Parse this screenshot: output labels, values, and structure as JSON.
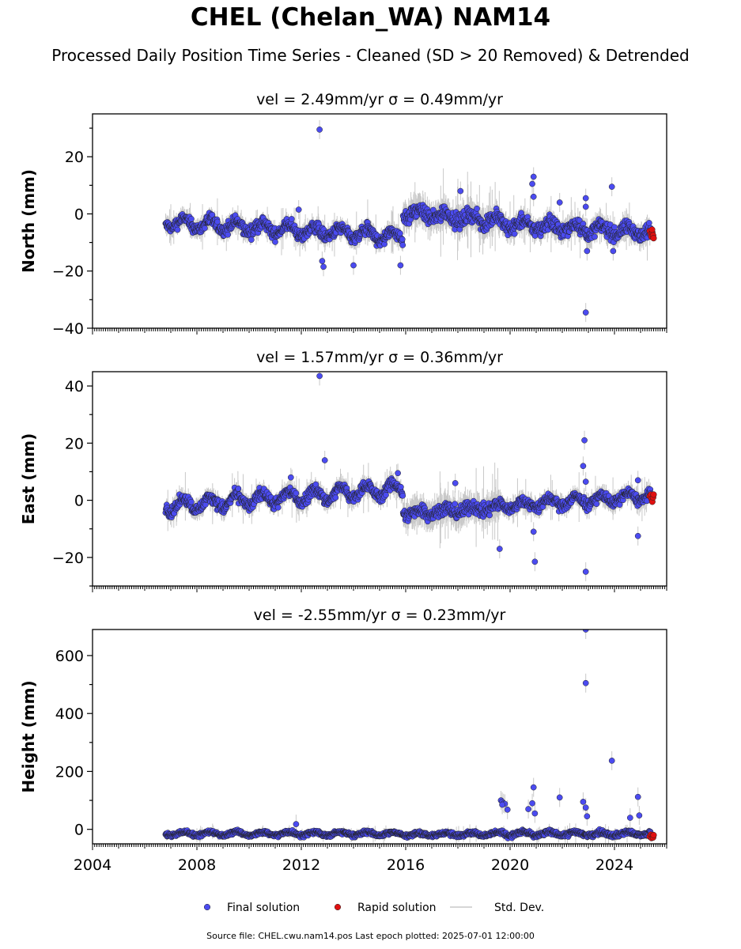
{
  "title": "CHEL (Chelan_WA) NAM14",
  "subtitle": "Processed Daily Position Time Series - Cleaned (SD > 20 Removed) & Detrended",
  "footer": "Source file: CHEL.cwu.nam14.pos  Last epoch plotted: 2025-07-01 12:00:00",
  "colors": {
    "final": "#4b4bf0",
    "rapid": "#e01010",
    "stddev": "#c8c8c8",
    "edge": "#222222"
  },
  "legend": [
    {
      "key": "final",
      "label": "Final solution",
      "marker": "dot"
    },
    {
      "key": "rapid",
      "label": "Rapid solution",
      "marker": "dot"
    },
    {
      "key": "stddev",
      "label": "Std. Dev.",
      "marker": "line"
    }
  ],
  "chart_data": [
    {
      "type": "scatter",
      "title": "vel = 2.49mm/yr   σ = 0.49mm/yr",
      "ylabel": "North (mm)",
      "xlim": [
        2004.0,
        2026.0
      ],
      "ylim": [
        -40,
        35
      ],
      "yticks": [
        -40,
        -20,
        0,
        20
      ],
      "xticks": [
        2004,
        2008,
        2012,
        2016,
        2020,
        2024
      ],
      "show_xtick_labels": false,
      "segments": [
        {
          "t0": 2006.8,
          "t1": 2015.9,
          "start": -3.0,
          "end": -8.0,
          "amp": 1.8,
          "noise": 1.6,
          "err": 2.5
        },
        {
          "t0": 2015.9,
          "t1": 2019.6,
          "start": 0.5,
          "end": -2.5,
          "amp": 1.5,
          "noise": 2.0,
          "err": 4.0
        },
        {
          "t0": 2019.6,
          "t1": 2025.4,
          "start": -3.5,
          "end": -6.5,
          "amp": 1.5,
          "noise": 1.8,
          "err": 3.0
        }
      ],
      "outliers": [
        [
          2012.7,
          29.5
        ],
        [
          2011.9,
          1.5
        ],
        [
          2012.8,
          -16.5
        ],
        [
          2012.85,
          -18.5
        ],
        [
          2014.0,
          -18.0
        ],
        [
          2015.8,
          -18.0
        ],
        [
          2020.9,
          13.0
        ],
        [
          2020.85,
          10.5
        ],
        [
          2020.9,
          6.0
        ],
        [
          2021.9,
          4.0
        ],
        [
          2022.9,
          5.5
        ],
        [
          2022.9,
          2.5
        ],
        [
          2022.95,
          -13.0
        ],
        [
          2022.9,
          -34.5
        ],
        [
          2023.9,
          9.5
        ],
        [
          2023.95,
          -13.0
        ],
        [
          2018.1,
          8.0
        ]
      ],
      "rapid": [
        [
          2025.35,
          -6.0
        ],
        [
          2025.4,
          -7.0
        ],
        [
          2025.42,
          -8.0
        ],
        [
          2025.45,
          -6.5
        ],
        [
          2025.48,
          -7.5
        ],
        [
          2025.5,
          -8.5
        ],
        [
          2025.44,
          -5.5
        ]
      ]
    },
    {
      "type": "scatter",
      "title": "vel = 1.57mm/yr   σ = 0.36mm/yr",
      "ylabel": "East (mm)",
      "xlim": [
        2004.0,
        2026.0
      ],
      "ylim": [
        -30,
        45
      ],
      "yticks": [
        -20,
        0,
        20,
        40
      ],
      "xticks": [
        2004,
        2008,
        2012,
        2016,
        2020,
        2024
      ],
      "show_xtick_labels": false,
      "segments": [
        {
          "t0": 2006.8,
          "t1": 2015.9,
          "start": -2.0,
          "end": 4.0,
          "amp": 2.2,
          "noise": 1.5,
          "err": 2.5
        },
        {
          "t0": 2015.9,
          "t1": 2019.6,
          "start": -4.5,
          "end": -2.5,
          "amp": 1.0,
          "noise": 1.8,
          "err": 4.0
        },
        {
          "t0": 2019.6,
          "t1": 2025.4,
          "start": -2.0,
          "end": 1.5,
          "amp": 1.5,
          "noise": 1.4,
          "err": 2.5
        }
      ],
      "outliers": [
        [
          2012.7,
          43.5
        ],
        [
          2012.9,
          14.0
        ],
        [
          2011.6,
          8.0
        ],
        [
          2015.7,
          9.5
        ],
        [
          2017.9,
          6.0
        ],
        [
          2019.6,
          -17.0
        ],
        [
          2020.9,
          -11.0
        ],
        [
          2020.95,
          -21.5
        ],
        [
          2022.85,
          21.0
        ],
        [
          2022.8,
          12.0
        ],
        [
          2022.9,
          6.5
        ],
        [
          2022.9,
          -25.0
        ],
        [
          2024.9,
          -12.5
        ],
        [
          2024.9,
          7.0
        ]
      ],
      "rapid": [
        [
          2025.35,
          1.5
        ],
        [
          2025.4,
          2.0
        ],
        [
          2025.42,
          0.5
        ],
        [
          2025.45,
          -0.5
        ],
        [
          2025.48,
          1.0
        ],
        [
          2025.5,
          2.0
        ]
      ]
    },
    {
      "type": "scatter",
      "title": "vel = -2.55mm/yr   σ = 0.23mm/yr",
      "ylabel": "Height (mm)",
      "xlim": [
        2004.0,
        2026.0
      ],
      "ylim": [
        -50,
        690
      ],
      "yticks": [
        0,
        200,
        400,
        600
      ],
      "xticks": [
        2004,
        2008,
        2012,
        2016,
        2020,
        2024
      ],
      "show_xtick_labels": true,
      "segments": [
        {
          "t0": 2006.8,
          "t1": 2015.9,
          "start": -15,
          "end": -15,
          "amp": 6,
          "noise": 5,
          "err": 8
        },
        {
          "t0": 2015.9,
          "t1": 2019.6,
          "start": -18,
          "end": -15,
          "amp": 5,
          "noise": 5,
          "err": 10
        },
        {
          "t0": 2019.6,
          "t1": 2025.4,
          "start": -15,
          "end": -15,
          "amp": 6,
          "noise": 6,
          "err": 10
        }
      ],
      "outliers": [
        [
          2019.65,
          100
        ],
        [
          2019.7,
          95
        ],
        [
          2019.75,
          90
        ],
        [
          2019.8,
          88
        ],
        [
          2019.7,
          85
        ],
        [
          2019.9,
          68
        ],
        [
          2011.8,
          18
        ],
        [
          2020.7,
          70
        ],
        [
          2020.85,
          90
        ],
        [
          2020.9,
          145
        ],
        [
          2020.95,
          55
        ],
        [
          2021.9,
          110
        ],
        [
          2022.9,
          690
        ],
        [
          2022.9,
          505
        ],
        [
          2022.8,
          95
        ],
        [
          2022.9,
          75
        ],
        [
          2022.95,
          45
        ],
        [
          2023.9,
          237
        ],
        [
          2024.9,
          112
        ],
        [
          2024.95,
          48
        ],
        [
          2024.6,
          40
        ]
      ],
      "rapid": [
        [
          2025.35,
          -25
        ],
        [
          2025.4,
          -18
        ],
        [
          2025.42,
          -30
        ],
        [
          2025.45,
          -22
        ],
        [
          2025.48,
          -28
        ],
        [
          2025.5,
          -20
        ]
      ]
    }
  ]
}
